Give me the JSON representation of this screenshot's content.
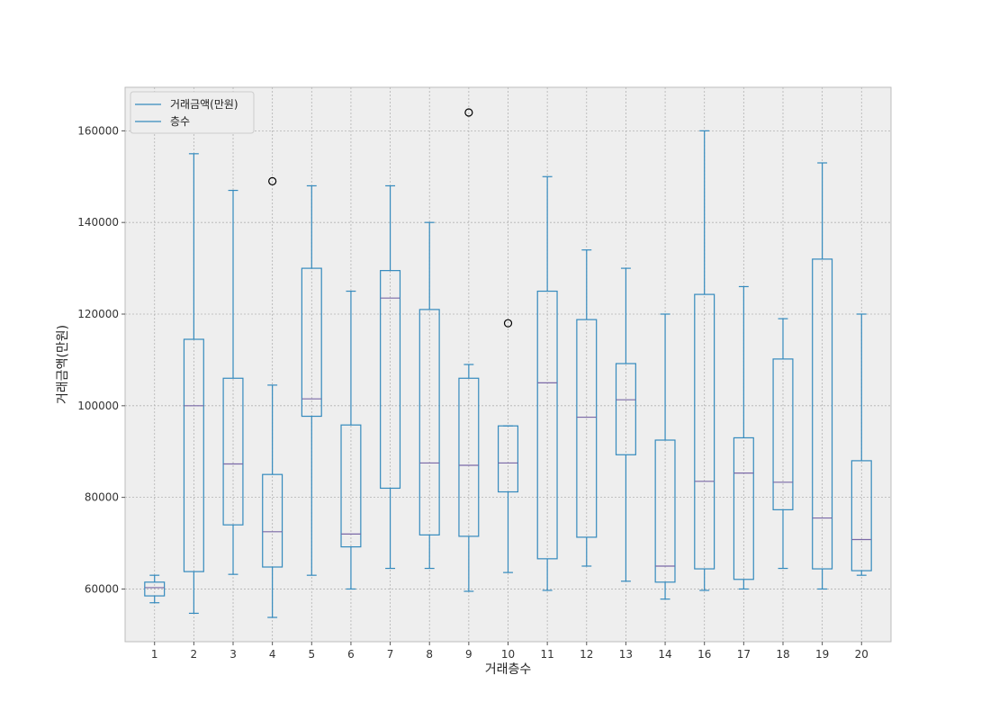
{
  "chart_data": {
    "type": "box",
    "xlabel": "거래층수",
    "ylabel": "거래금액(만원)",
    "ylim": [
      48500,
      169500
    ],
    "yticks": [
      60000,
      80000,
      100000,
      120000,
      140000,
      160000
    ],
    "grid": true,
    "legend": {
      "placement": "top-left",
      "entries": [
        "거래금액(만원)",
        "층수"
      ]
    },
    "colors": {
      "box": "#348abd",
      "median": "#7a68a6",
      "flier": "#000000",
      "plot_bg": "#eeeeee",
      "grid": "#b2b2b2",
      "frame": "#bcbcbc"
    },
    "categories": [
      "1",
      "2",
      "3",
      "4",
      "5",
      "6",
      "7",
      "8",
      "9",
      "10",
      "11",
      "12",
      "13",
      "14",
      "16",
      "17",
      "18",
      "19",
      "20"
    ],
    "boxes": [
      {
        "cat": "1",
        "whislo": 57000,
        "q1": 58500,
        "med": 60300,
        "q3": 61500,
        "whishi": 63000,
        "fliers": []
      },
      {
        "cat": "2",
        "whislo": 54700,
        "q1": 63800,
        "med": 100000,
        "q3": 114500,
        "whishi": 155000,
        "fliers": []
      },
      {
        "cat": "3",
        "whislo": 63200,
        "q1": 74000,
        "med": 87300,
        "q3": 106000,
        "whishi": 147000,
        "fliers": []
      },
      {
        "cat": "4",
        "whislo": 53800,
        "q1": 64800,
        "med": 72500,
        "q3": 85000,
        "whishi": 104500,
        "fliers": [
          149000
        ]
      },
      {
        "cat": "5",
        "whislo": 63000,
        "q1": 97700,
        "med": 101500,
        "q3": 130000,
        "whishi": 148000,
        "fliers": []
      },
      {
        "cat": "6",
        "whislo": 60000,
        "q1": 69200,
        "med": 72000,
        "q3": 95800,
        "whishi": 125000,
        "fliers": []
      },
      {
        "cat": "7",
        "whislo": 64500,
        "q1": 82000,
        "med": 123500,
        "q3": 129500,
        "whishi": 148000,
        "fliers": []
      },
      {
        "cat": "8",
        "whislo": 64500,
        "q1": 71800,
        "med": 87500,
        "q3": 121000,
        "whishi": 140000,
        "fliers": []
      },
      {
        "cat": "9",
        "whislo": 59500,
        "q1": 71500,
        "med": 87000,
        "q3": 106000,
        "whishi": 109000,
        "fliers": [
          164000
        ]
      },
      {
        "cat": "10",
        "whislo": 63600,
        "q1": 81200,
        "med": 87500,
        "q3": 95600,
        "whishi": 95600,
        "fliers": [
          118000
        ]
      },
      {
        "cat": "11",
        "whislo": 59700,
        "q1": 66600,
        "med": 105000,
        "q3": 125000,
        "whishi": 150000,
        "fliers": []
      },
      {
        "cat": "12",
        "whislo": 65000,
        "q1": 71300,
        "med": 97500,
        "q3": 118800,
        "whishi": 134000,
        "fliers": []
      },
      {
        "cat": "13",
        "whislo": 61700,
        "q1": 89300,
        "med": 101300,
        "q3": 109200,
        "whishi": 130000,
        "fliers": []
      },
      {
        "cat": "14",
        "whislo": 57800,
        "q1": 61500,
        "med": 65000,
        "q3": 92500,
        "whishi": 120000,
        "fliers": []
      },
      {
        "cat": "16",
        "whislo": 59700,
        "q1": 64400,
        "med": 83500,
        "q3": 124300,
        "whishi": 160000,
        "fliers": []
      },
      {
        "cat": "17",
        "whislo": 60000,
        "q1": 62100,
        "med": 85300,
        "q3": 93000,
        "whishi": 126000,
        "fliers": []
      },
      {
        "cat": "18",
        "whislo": 64500,
        "q1": 77300,
        "med": 83300,
        "q3": 110200,
        "whishi": 119000,
        "fliers": []
      },
      {
        "cat": "19",
        "whislo": 60000,
        "q1": 64400,
        "med": 75500,
        "q3": 132000,
        "whishi": 153000,
        "fliers": []
      },
      {
        "cat": "20",
        "whislo": 63000,
        "q1": 64000,
        "med": 70800,
        "q3": 88000,
        "whishi": 120000,
        "fliers": []
      }
    ]
  }
}
